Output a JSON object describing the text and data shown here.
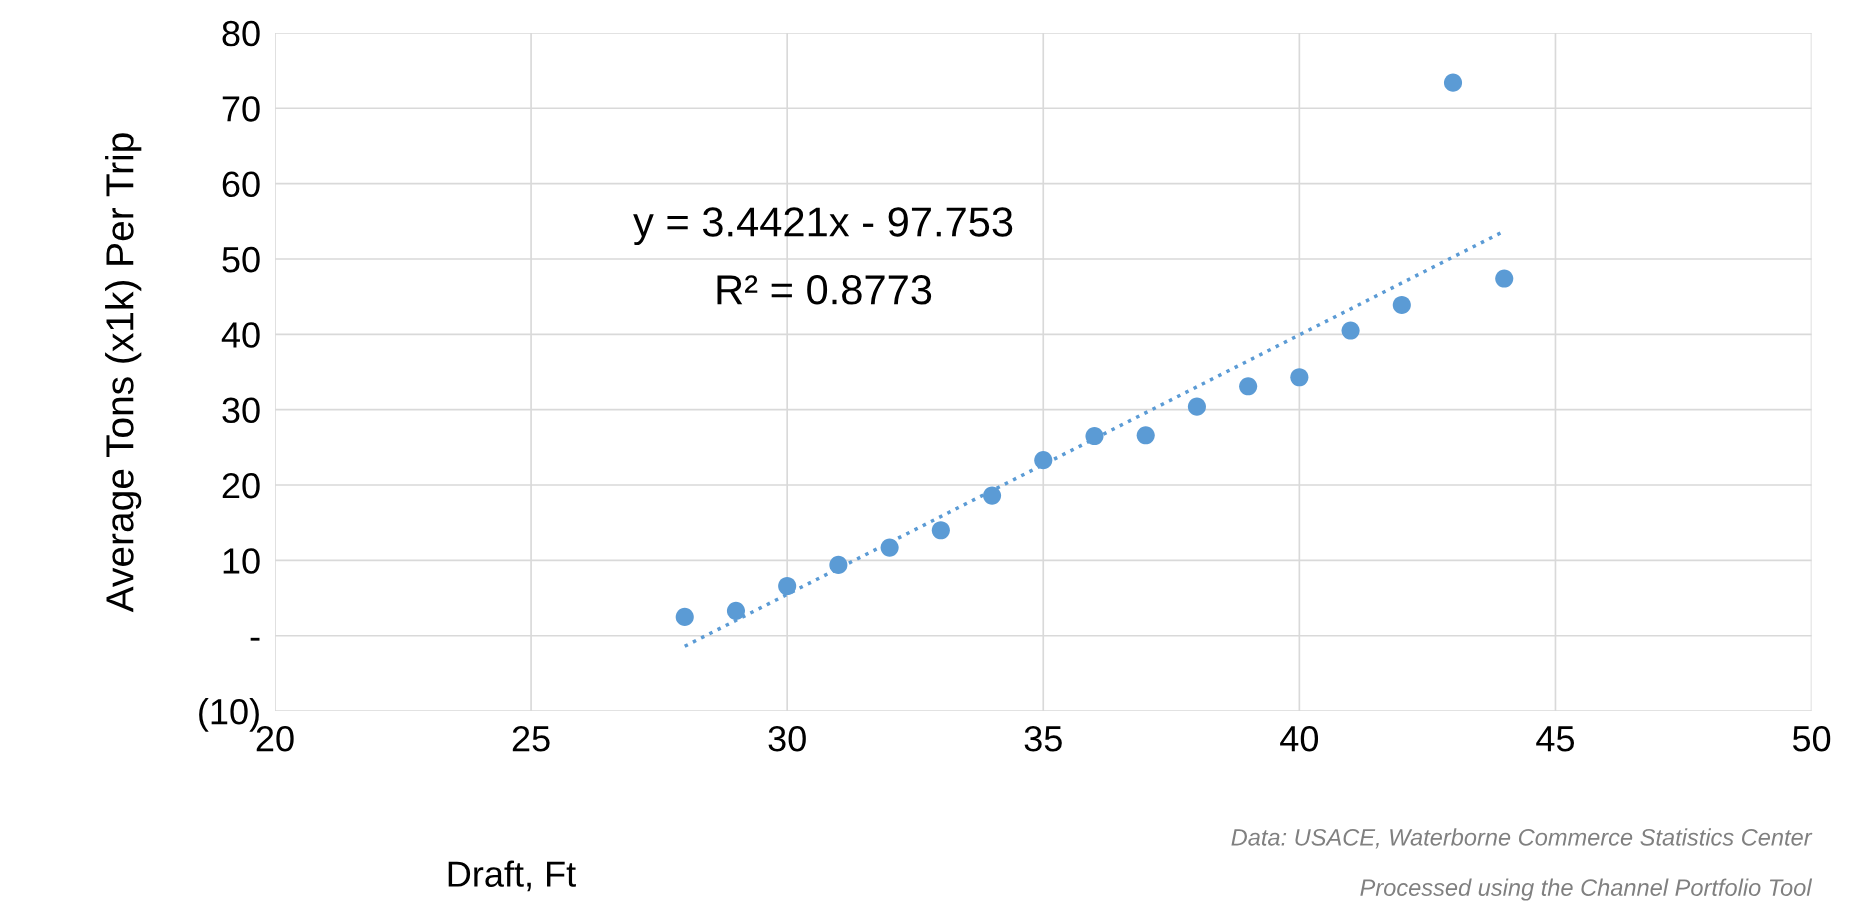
{
  "chart_data": {
    "type": "scatter",
    "xlabel": "Draft, Ft",
    "ylabel": "Average Tons (x1k) Per Trip",
    "x": [
      28,
      29,
      30,
      31,
      32,
      33,
      34,
      35,
      36,
      37,
      38,
      39,
      40,
      41,
      42,
      43,
      44
    ],
    "series": [
      {
        "color": "#5b9bd5",
        "marker": "circle",
        "values": [
          2.5,
          3.3,
          6.6,
          9.4,
          11.7,
          14.0,
          18.6,
          23.3,
          26.5,
          26.6,
          30.4,
          33.1,
          34.3,
          40.5,
          43.9,
          73.4,
          47.4
        ]
      },
      {
        "type": "line",
        "color": "#5b9bd5",
        "line_style": "dotted",
        "marker": "none",
        "x": [
          28,
          44
        ],
        "values": [
          -1.4,
          53.7
        ]
      }
    ],
    "xlim": [
      20,
      50
    ],
    "xticks": [
      20,
      25,
      30,
      35,
      40,
      45,
      50
    ],
    "ylim": [
      -10,
      80
    ],
    "yticks": [
      {
        "value": -10,
        "label": "(10)"
      },
      {
        "value": 0,
        "label": "-"
      },
      10,
      20,
      30,
      40,
      50,
      60,
      70,
      80
    ],
    "grid": true,
    "legend": false,
    "annotations": [
      "y = 3.4421x - 97.753",
      "R² = 0.8773",
      "Data: USACE, Waterborne Commerce Statistics Center",
      "Processed using the Channel Portfolio Tool"
    ]
  }
}
